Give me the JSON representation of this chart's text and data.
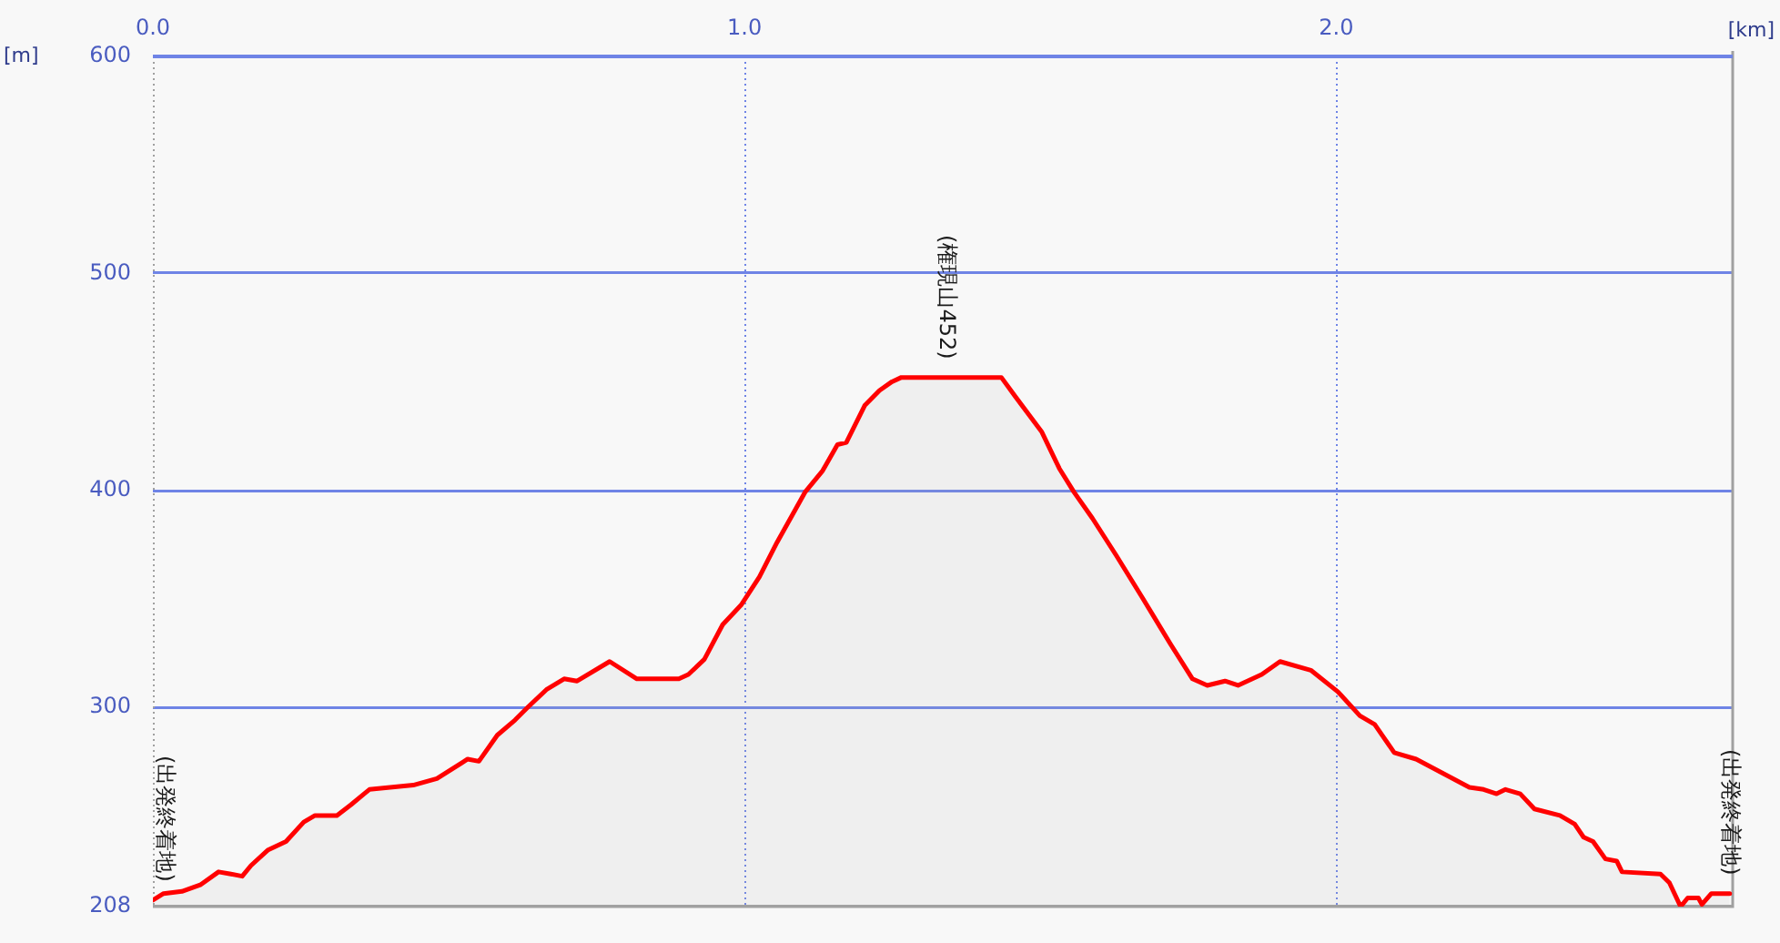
{
  "chart_data": {
    "type": "area",
    "xlabel": "[km]",
    "ylabel": "[m]",
    "annotations": [
      {
        "text": "(権現山452)",
        "x": 1.34,
        "y": 452
      },
      {
        "text": "(出発終着地)",
        "x": 0,
        "y": 211
      },
      {
        "text": "(出発終着地)",
        "x": 2.665,
        "y": 214
      }
    ],
    "x": [
      0,
      0.018,
      0.049,
      0.08,
      0.111,
      0.132,
      0.151,
      0.166,
      0.194,
      0.225,
      0.255,
      0.274,
      0.311,
      0.335,
      0.357,
      0.366,
      0.44,
      0.48,
      0.532,
      0.551,
      0.582,
      0.612,
      0.634,
      0.665,
      0.695,
      0.717,
      0.772,
      0.818,
      0.889,
      0.905,
      0.932,
      0.963,
      0.994,
      1.025,
      1.055,
      1.102,
      1.132,
      1.157,
      1.172,
      1.203,
      1.228,
      1.249,
      1.265,
      1.434,
      1.458,
      1.502,
      1.532,
      1.557,
      1.588,
      1.628,
      1.671,
      1.72,
      1.757,
      1.782,
      1.812,
      1.834,
      1.874,
      1.905,
      1.957,
      2.003,
      2.04,
      2.065,
      2.098,
      2.135,
      2.225,
      2.249,
      2.271,
      2.286,
      2.311,
      2.335,
      2.378,
      2.403,
      2.418,
      2.434,
      2.455,
      2.474,
      2.483,
      2.548,
      2.563,
      2.582,
      2.594,
      2.612,
      2.618,
      2.634,
      2.665
    ],
    "values": [
      211,
      214,
      215,
      218,
      224,
      223,
      222,
      227,
      234,
      238,
      247,
      250,
      250,
      255,
      260,
      262,
      264,
      267,
      276,
      275,
      287,
      294,
      300,
      308,
      313,
      312,
      321,
      313,
      313,
      315,
      322,
      338,
      347,
      360,
      376,
      399,
      409,
      421,
      422,
      439,
      446,
      450,
      452,
      452,
      443,
      427,
      410,
      399,
      387,
      370,
      351,
      329,
      313,
      310,
      312,
      310,
      315,
      321,
      317,
      307,
      296,
      292,
      279,
      276,
      263,
      262,
      260,
      262,
      260,
      253,
      250,
      246,
      240,
      238,
      230,
      229,
      224,
      223,
      219,
      208,
      212,
      212,
      209,
      214,
      214
    ],
    "color": "#ff0000",
    "marker": "none",
    "line_style": "solid",
    "xlim": [
      0,
      2.67
    ],
    "xticks": [
      {
        "value": 0,
        "label": "0.0"
      },
      {
        "value": 1,
        "label": "1.0"
      },
      {
        "value": 2,
        "label": "2.0"
      }
    ],
    "ylim": [
      208,
      600
    ],
    "yticks": [
      208,
      300,
      400,
      500,
      600
    ],
    "grid": true,
    "legend": false
  }
}
